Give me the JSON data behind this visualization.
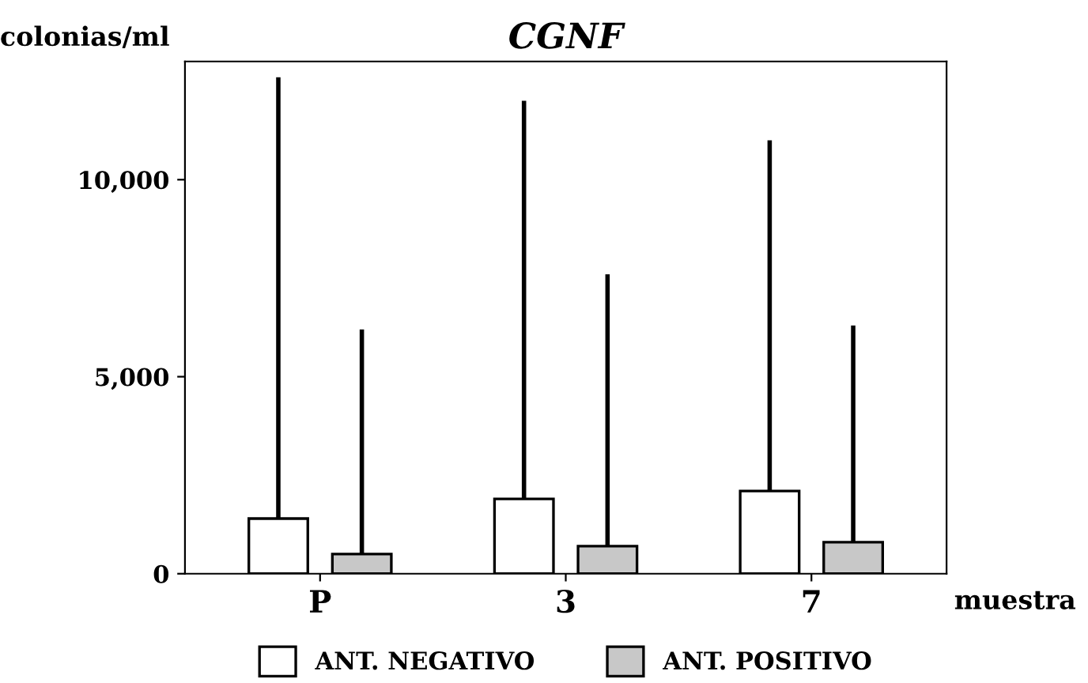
{
  "chart_data": {
    "type": "bar",
    "title": "CGNF",
    "ylabel": "colonias/ml",
    "xlabel": "muestra",
    "categories": [
      "P",
      "3",
      "7"
    ],
    "series": [
      {
        "name": "ANT. NEGATIVO",
        "color": "#ffffff",
        "values": [
          1400,
          1900,
          2100
        ],
        "errors": [
          [
            1400,
            12600
          ],
          [
            1900,
            12000
          ],
          [
            2100,
            11000
          ]
        ]
      },
      {
        "name": "ANT. POSITIVO",
        "color": "#c8c8c8",
        "values": [
          500,
          700,
          800
        ],
        "errors": [
          [
            500,
            6200
          ],
          [
            700,
            7600
          ],
          [
            800,
            6300
          ]
        ]
      }
    ],
    "ylim": [
      0,
      13000
    ],
    "yticks": [
      0,
      {
        "value": 5000,
        "label": "5,000"
      },
      {
        "value": 10000,
        "label": "10,000"
      }
    ],
    "grid": false,
    "legend": "bottom"
  }
}
